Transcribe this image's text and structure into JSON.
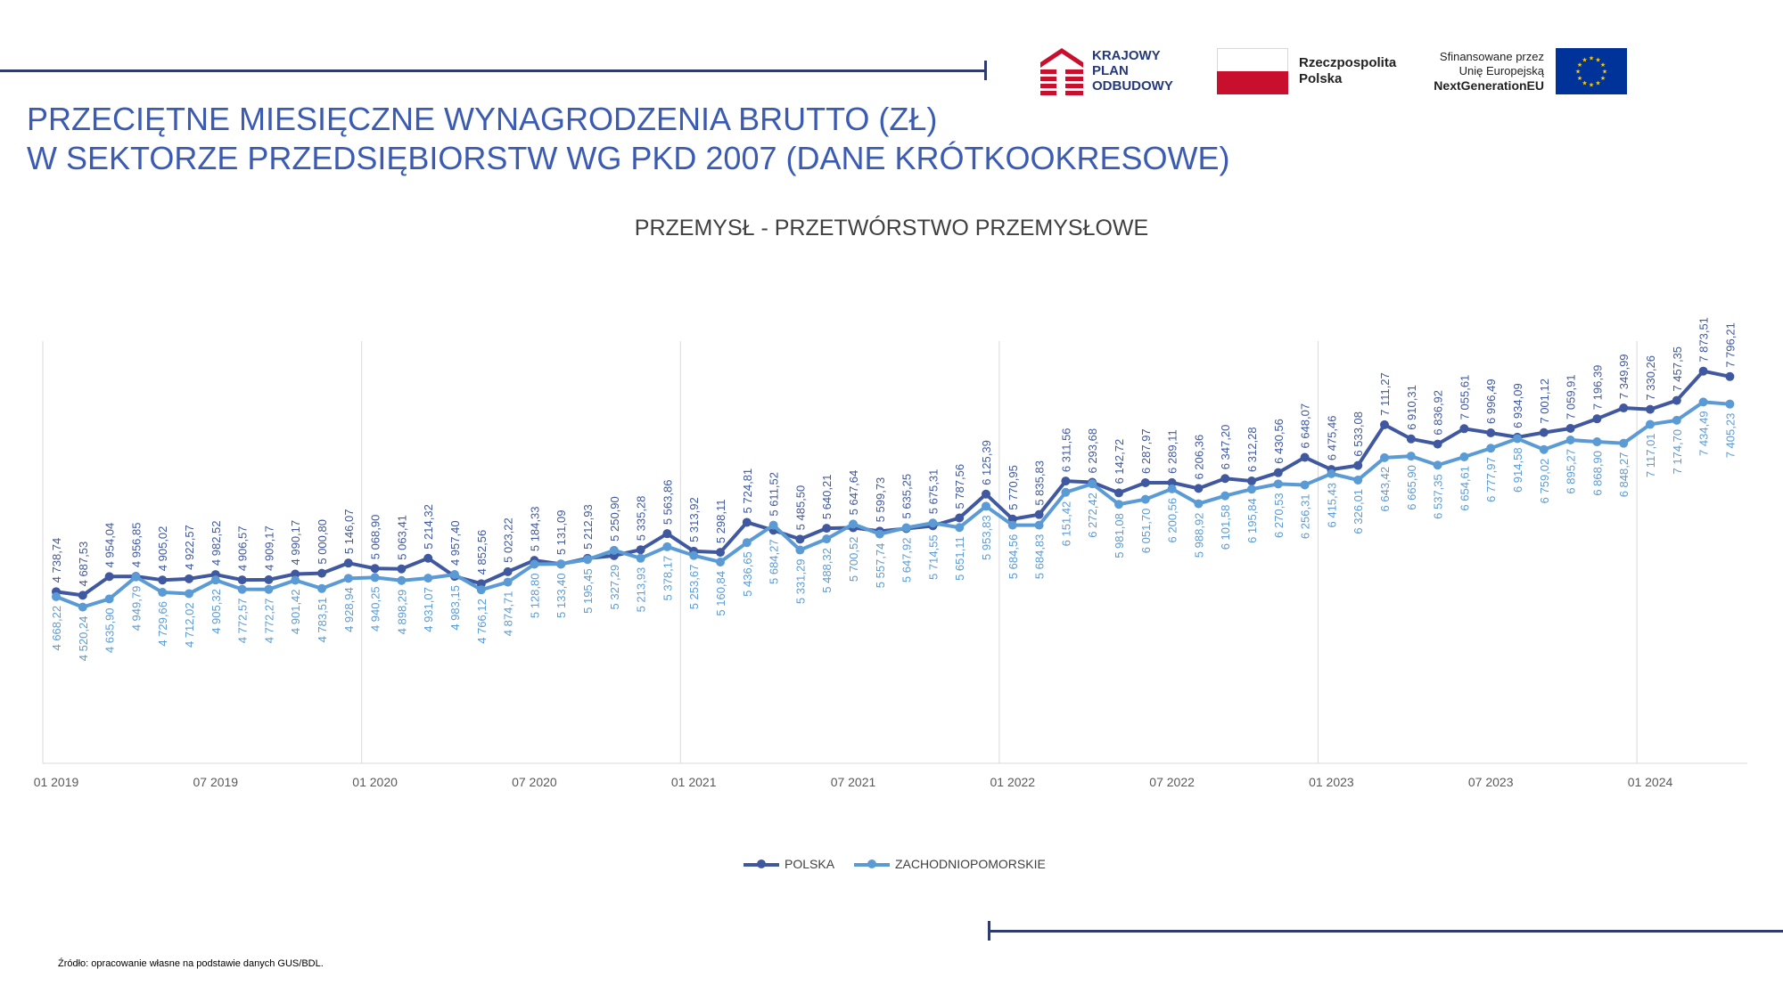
{
  "header": {
    "title_line1": "PRZECIĘTNE MIESIĘCZNE WYNAGRODZENIA BRUTTO (ZŁ)",
    "title_line2": "W SEKTORZE PRZEDSIĘBIORSTW WG PKD 2007 (DANE KRÓTKOOKRESOWE)"
  },
  "logos": {
    "kpo": [
      "KRAJOWY",
      "PLAN",
      "ODBUDOWY"
    ],
    "rp": [
      "Rzeczpospolita",
      "Polska"
    ],
    "eu": [
      "Sfinansowane przez",
      "Unię Europejską",
      "NextGenerationEU"
    ]
  },
  "colors": {
    "polska": "#3f58a0",
    "zachodniopomorskie": "#5b9bd5",
    "title": "#3b5bb3",
    "accent_line": "#2f3a6d",
    "eu_blue": "#003399",
    "eu_star": "#ffcc00",
    "flag_red": "#c8102e",
    "kpo_red": "#c8102e"
  },
  "source": "Źródło: opracowanie własne na podstawie danych GUS/BDL.",
  "chart_data": {
    "type": "line",
    "title": "PRZEMYSŁ - PRZETWÓRSTWO PRZEMYSŁOWE",
    "x": [
      "01 2019",
      "02 2019",
      "03 2019",
      "04 2019",
      "05 2019",
      "06 2019",
      "07 2019",
      "08 2019",
      "09 2019",
      "10 2019",
      "11 2019",
      "12 2019",
      "01 2020",
      "02 2020",
      "03 2020",
      "04 2020",
      "05 2020",
      "06 2020",
      "07 2020",
      "08 2020",
      "09 2020",
      "10 2020",
      "11 2020",
      "12 2020",
      "01 2021",
      "02 2021",
      "03 2021",
      "04 2021",
      "05 2021",
      "06 2021",
      "07 2021",
      "08 2021",
      "09 2021",
      "10 2021",
      "11 2021",
      "12 2021",
      "01 2022",
      "02 2022",
      "03 2022",
      "04 2022",
      "05 2022",
      "06 2022",
      "07 2022",
      "08 2022",
      "09 2022",
      "10 2022",
      "11 2022",
      "12 2022",
      "01 2023",
      "02 2023",
      "03 2023",
      "04 2023",
      "05 2023",
      "06 2023",
      "07 2023",
      "08 2023",
      "09 2023",
      "10 2023",
      "11 2023",
      "12 2023",
      "01 2024",
      "02 2024",
      "03 2024",
      "04 2024"
    ],
    "tick_labels": [
      "01 2019",
      "07 2019",
      "01 2020",
      "07 2020",
      "01 2021",
      "07 2021",
      "01 2022",
      "07 2022",
      "01 2023",
      "07 2023",
      "01 2024"
    ],
    "series": [
      {
        "name": "POLSKA",
        "values": [
          4738.74,
          4687.53,
          4954.04,
          4956.85,
          4905.02,
          4922.57,
          4982.52,
          4906.57,
          4909.17,
          4990.17,
          5000.8,
          5146.07,
          5068.9,
          5063.41,
          5214.32,
          4957.4,
          4852.56,
          5023.22,
          5184.33,
          5131.09,
          5212.93,
          5250.9,
          5335.28,
          5563.86,
          5313.92,
          5298.11,
          5724.81,
          5611.52,
          5485.5,
          5640.21,
          5647.64,
          5599.73,
          5635.25,
          5675.31,
          5787.56,
          6125.39,
          5770.95,
          5835.83,
          6311.56,
          6293.68,
          6142.72,
          6287.97,
          6289.11,
          6206.36,
          6347.2,
          6312.28,
          6430.56,
          6648.07,
          6475.46,
          6533.08,
          7111.27,
          6910.31,
          6836.92,
          7055.61,
          6996.49,
          6934.09,
          7001.12,
          7059.91,
          7196.39,
          7349.99,
          7330.26,
          7457.35,
          7873.51,
          7796.21
        ],
        "labels": [
          "4 738,74",
          "4 687,53",
          "4 954,04",
          "4 956,85",
          "4 905,02",
          "4 922,57",
          "4 982,52",
          "4 906,57",
          "4 909,17",
          "4 990,17",
          "5 000,80",
          "5 146,07",
          "5 068,90",
          "5 063,41",
          "5 214,32",
          "4 957,40",
          "4 852,56",
          "5 023,22",
          "5 184,33",
          "5 131,09",
          "5 212,93",
          "5 250,90",
          "5 335,28",
          "5 563,86",
          "5 313,92",
          "5 298,11",
          "5 724,81",
          "5 611,52",
          "5 485,50",
          "5 640,21",
          "5 647,64",
          "5 599,73",
          "5 635,25",
          "5 675,31",
          "5 787,56",
          "6 125,39",
          "5 770,95",
          "5 835,83",
          "6 311,56",
          "6 293,68",
          "6 142,72",
          "6 287,97",
          "6 289,11",
          "6 206,36",
          "6 347,20",
          "6 312,28",
          "6 430,56",
          "6 648,07",
          "6 475,46",
          "6 533,08",
          "7 111,27",
          "6 910,31",
          "6 836,92",
          "7 055,61",
          "6 996,49",
          "6 934,09",
          "7 001,12",
          "7 059,91",
          "7 196,39",
          "7 349,99",
          "7 330,26",
          "7 457,35",
          "7 873,51",
          "7 796,21"
        ]
      },
      {
        "name": "ZACHODNIOPOMORSKIE",
        "values": [
          4668.22,
          4520.24,
          4635.9,
          4949.79,
          4729.66,
          4712.02,
          4905.32,
          4772.57,
          4772.27,
          4901.42,
          4783.51,
          4928.94,
          4940.25,
          4898.29,
          4931.07,
          4983.15,
          4766.12,
          4874.71,
          5128.8,
          5133.4,
          5195.45,
          5327.29,
          5213.93,
          5378.17,
          5253.67,
          5160.84,
          5436.65,
          5684.27,
          5331.29,
          5488.32,
          5700.52,
          5557.74,
          5647.92,
          5714.55,
          5651.11,
          5953.83,
          5684.56,
          5684.83,
          6151.42,
          6272.42,
          5981.08,
          6051.7,
          6200.56,
          5988.92,
          6101.58,
          6195.84,
          6270.53,
          6256.31,
          6415.43,
          6326.01,
          6643.42,
          6665.9,
          6537.35,
          6654.61,
          6777.97,
          6914.58,
          6759.02,
          6895.27,
          6868.9,
          6848.27,
          7117.01,
          7174.7,
          7434.49,
          7405.23
        ],
        "labels": [
          "4 668,22",
          "4 520,24",
          "4 635,90",
          "4 949,79",
          "4 729,66",
          "4 712,02",
          "4 905,32",
          "4 772,57",
          "4 772,27",
          "4 901,42",
          "4 783,51",
          "4 928,94",
          "4 940,25",
          "4 898,29",
          "4 931,07",
          "4 983,15",
          "4 766,12",
          "4 874,71",
          "5 128,80",
          "5 133,40",
          "5 195,45",
          "5 327,29",
          "5 213,93",
          "5 378,17",
          "5 253,67",
          "5 160,84",
          "5 436,65",
          "5 684,27",
          "5 331,29",
          "5 488,32",
          "5 700,52",
          "5 557,74",
          "5 647,92",
          "5 714,55",
          "5 651,11",
          "5 953,83",
          "5 684,56",
          "5 684,83",
          "6 151,42",
          "6 272,42",
          "5 981,08",
          "6 051,70",
          "6 200,56",
          "5 988,92",
          "6 101,58",
          "6 195,84",
          "6 270,53",
          "6 256,31",
          "6 415,43",
          "6 326,01",
          "6 643,42",
          "6 665,90",
          "6 537,35",
          "6 654,61",
          "6 777,97",
          "6 914,58",
          "6 759,02",
          "6 895,27",
          "6 868,90",
          "6 848,27",
          "7 117,01",
          "7 174,70",
          "7 434,49",
          "7 405,23"
        ]
      }
    ],
    "ylim": [
      2300,
      8300
    ],
    "grid": "vertical lines at year starts",
    "legend": "bottom-center",
    "xlabel": "",
    "ylabel": ""
  }
}
